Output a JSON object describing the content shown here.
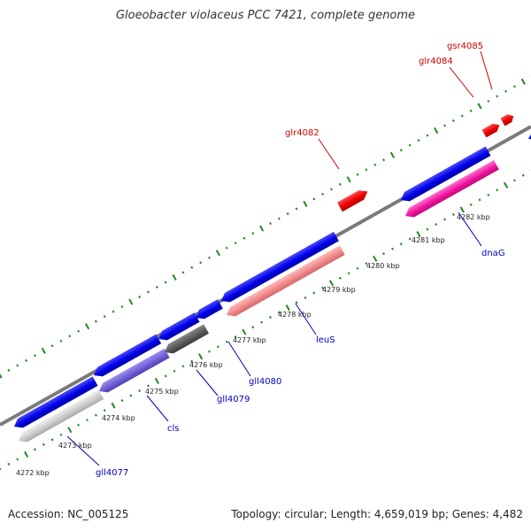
{
  "title": "Gloeobacter violaceus PCC 7421, complete genome",
  "footer": {
    "accession_label": "Accession: NC_005125",
    "summary_label": "Topology: circular; Length: 4,659,019 bp; Genes: 4,482"
  },
  "colors": {
    "forward_gene": "#ee0000",
    "reverse_gene": "#0000e6",
    "backbone": "#7a7a7a",
    "tick": "#1e8a1e",
    "forward_label": "#cc0000",
    "reverse_label": "#0000bb"
  },
  "kbp_labels": [
    "4272 kbp",
    "4273 kbp",
    "4274 kbp",
    "4275 kbp",
    "4276 kbp",
    "4277 kbp",
    "4278 kbp",
    "4279 kbp",
    "4280 kbp",
    "4281 kbp",
    "4282 kbp"
  ],
  "forward_gene_labels": [
    "glr4082",
    "glr4084",
    "gsr4085"
  ],
  "reverse_gene_labels": [
    "gll4077",
    "cls",
    "gll4079",
    "gll4080",
    "leuS",
    "dnaG"
  ]
}
